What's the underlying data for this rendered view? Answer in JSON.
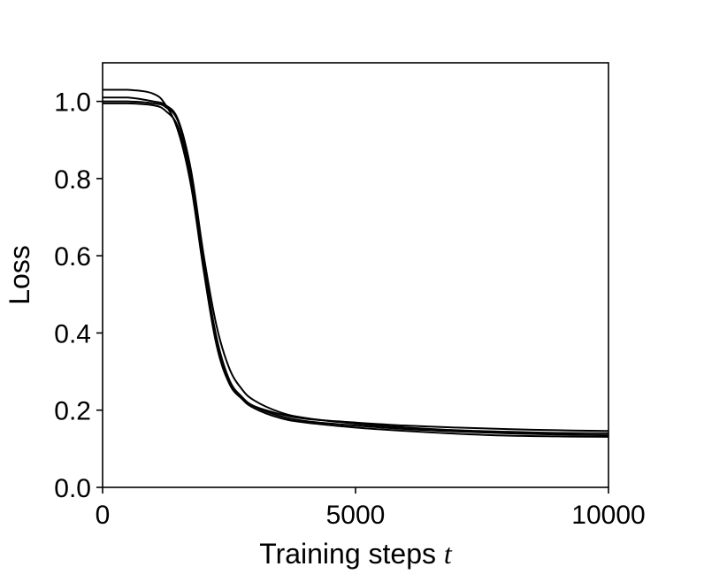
{
  "chart_data": {
    "type": "line",
    "title": "",
    "xlabel": "Training steps",
    "xlabel_var": "t",
    "ylabel": "Loss",
    "xlim": [
      0,
      10000
    ],
    "ylim": [
      0,
      1.1
    ],
    "xticks": [
      0,
      5000,
      10000
    ],
    "xtick_labels": [
      "0",
      "5000",
      "10000"
    ],
    "yticks": [
      0.0,
      0.2,
      0.4,
      0.6,
      0.8,
      1.0
    ],
    "ytick_labels": [
      "0.0",
      "0.2",
      "0.4",
      "0.6",
      "0.8",
      "1.0"
    ],
    "grid": false,
    "line_color": "#000000",
    "x": [
      0,
      500,
      1000,
      1250,
      1500,
      1750,
      2000,
      2250,
      2500,
      2750,
      3000,
      3500,
      4000,
      5000,
      6000,
      7000,
      8000,
      9000,
      10000
    ],
    "series": [
      {
        "values": [
          1.03,
          1.03,
          1.02,
          0.99,
          0.92,
          0.78,
          0.56,
          0.37,
          0.27,
          0.23,
          0.21,
          0.19,
          0.178,
          0.168,
          0.16,
          0.155,
          0.151,
          0.148,
          0.146
        ]
      },
      {
        "values": [
          1.01,
          1.01,
          1.0,
          0.99,
          0.95,
          0.82,
          0.6,
          0.42,
          0.31,
          0.255,
          0.225,
          0.195,
          0.18,
          0.165,
          0.155,
          0.148,
          0.144,
          0.141,
          0.14
        ]
      },
      {
        "values": [
          1.0,
          1.0,
          0.995,
          0.985,
          0.945,
          0.81,
          0.58,
          0.39,
          0.28,
          0.235,
          0.21,
          0.185,
          0.172,
          0.16,
          0.151,
          0.145,
          0.14,
          0.137,
          0.135
        ]
      },
      {
        "values": [
          0.995,
          0.995,
          0.99,
          0.975,
          0.93,
          0.8,
          0.57,
          0.38,
          0.275,
          0.23,
          0.205,
          0.18,
          0.168,
          0.155,
          0.146,
          0.139,
          0.134,
          0.132,
          0.131
        ]
      }
    ]
  }
}
